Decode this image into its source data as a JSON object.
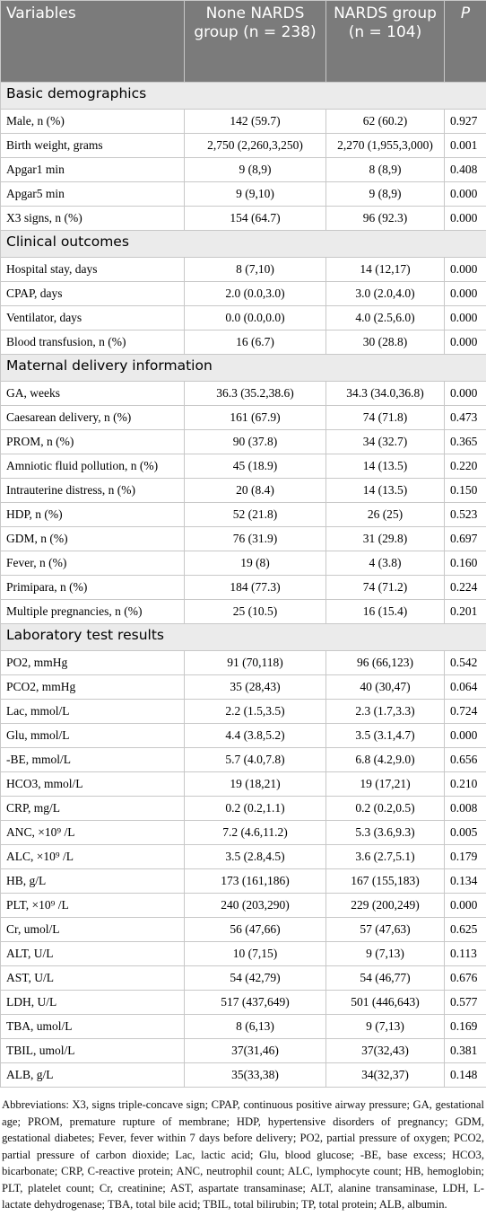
{
  "header": {
    "columns": [
      "Variables",
      "None NARDS group (n = 238)",
      "NARDS group (n = 104)",
      "P"
    ]
  },
  "sections": [
    {
      "title": "Basic demographics",
      "rows": [
        [
          "Male, n (%)",
          "142 (59.7)",
          "62 (60.2)",
          "0.927"
        ],
        [
          "Birth weight, grams",
          "2,750 (2,260,3,250)",
          "2,270 (1,955,3,000)",
          "0.001"
        ],
        [
          "Apgar1 min",
          "9 (8,9)",
          "8 (8,9)",
          "0.408"
        ],
        [
          "Apgar5 min",
          "9 (9,10)",
          "9 (8,9)",
          "0.000"
        ],
        [
          "X3 signs, n (%)",
          "154 (64.7)",
          "96 (92.3)",
          "0.000"
        ]
      ]
    },
    {
      "title": "Clinical outcomes",
      "rows": [
        [
          "Hospital stay, days",
          "8 (7,10)",
          "14 (12,17)",
          "0.000"
        ],
        [
          "CPAP, days",
          "2.0 (0.0,3.0)",
          "3.0 (2.0,4.0)",
          "0.000"
        ],
        [
          "Ventilator, days",
          "0.0 (0.0,0.0)",
          "4.0 (2.5,6.0)",
          "0.000"
        ],
        [
          "Blood transfusion, n (%)",
          "16 (6.7)",
          "30 (28.8)",
          "0.000"
        ]
      ]
    },
    {
      "title": "Maternal delivery information",
      "rows": [
        [
          "GA, weeks",
          "36.3 (35.2,38.6)",
          "34.3 (34.0,36.8)",
          "0.000"
        ],
        [
          "Caesarean delivery, n (%)",
          "161 (67.9)",
          "74 (71.8)",
          "0.473"
        ],
        [
          "PROM, n (%)",
          "90 (37.8)",
          "34 (32.7)",
          "0.365"
        ],
        [
          "Amniotic fluid pollution, n (%)",
          "45 (18.9)",
          "14 (13.5)",
          "0.220"
        ],
        [
          "Intrauterine distress, n (%)",
          "20 (8.4)",
          "14 (13.5)",
          "0.150"
        ],
        [
          "HDP, n (%)",
          "52 (21.8)",
          "26 (25)",
          "0.523"
        ],
        [
          "GDM, n (%)",
          "76 (31.9)",
          "31 (29.8)",
          "0.697"
        ],
        [
          "Fever, n (%)",
          "19 (8)",
          "4 (3.8)",
          "0.160"
        ],
        [
          "Primipara, n (%)",
          "184 (77.3)",
          "74 (71.2)",
          "0.224"
        ],
        [
          "Multiple pregnancies, n (%)",
          "25 (10.5)",
          "16 (15.4)",
          "0.201"
        ]
      ]
    },
    {
      "title": "Laboratory test results",
      "rows": [
        [
          "PO2, mmHg",
          "91 (70,118)",
          "96 (66,123)",
          "0.542"
        ],
        [
          "PCO2, mmHg",
          "35 (28,43)",
          "40 (30,47)",
          "0.064"
        ],
        [
          "Lac, mmol/L",
          "2.2 (1.5,3.5)",
          "2.3 (1.7,3.3)",
          "0.724"
        ],
        [
          "Glu, mmol/L",
          "4.4 (3.8,5.2)",
          "3.5 (3.1,4.7)",
          "0.000"
        ],
        [
          "-BE, mmol/L",
          "5.7 (4.0,7.8)",
          "6.8 (4.2,9.0)",
          "0.656"
        ],
        [
          "HCO3, mmol/L",
          "19 (18,21)",
          "19 (17,21)",
          "0.210"
        ],
        [
          "CRP, mg/L",
          "0.2 (0.2,1.1)",
          "0.2 (0.2,0.5)",
          "0.008"
        ],
        [
          "ANC, ×10⁹ /L",
          "7.2 (4.6,11.2)",
          "5.3 (3.6,9.3)",
          "0.005"
        ],
        [
          "ALC, ×10⁹ /L",
          "3.5 (2.8,4.5)",
          "3.6 (2.7,5.1)",
          "0.179"
        ],
        [
          "HB, g/L",
          "173 (161,186)",
          "167 (155,183)",
          "0.134"
        ],
        [
          "PLT, ×10⁹ /L",
          "240 (203,290)",
          "229 (200,249)",
          "0.000"
        ],
        [
          "Cr, umol/L",
          "56 (47,66)",
          "57 (47,63)",
          "0.625"
        ],
        [
          "ALT, U/L",
          "10 (7,15)",
          "9 (7,13)",
          "0.113"
        ],
        [
          "AST, U/L",
          "54 (42,79)",
          "54 (46,77)",
          "0.676"
        ],
        [
          "LDH, U/L",
          "517 (437,649)",
          "501 (446,643)",
          "0.577"
        ],
        [
          "TBA, umol/L",
          "8 (6,13)",
          "9 (7,13)",
          "0.169"
        ],
        [
          "TBIL, umol/L",
          "37(31,46)",
          "37(32,43)",
          "0.381"
        ],
        [
          "ALB, g/L",
          "35(33,38)",
          "34(32,37)",
          "0.148"
        ]
      ]
    }
  ],
  "footnote": "Abbreviations: X3, signs triple-concave sign; CPAP, continuous positive airway pressure; GA, gestational age; PROM, premature rupture of membrane; HDP, hypertensive disorders of pregnancy; GDM, gestational diabetes; Fever, fever within 7 days before delivery; PO2, partial pressure of oxygen; PCO2, partial pressure of carbon dioxide; Lac, lactic acid; Glu, blood glucose; -BE, base excess; HCO3, bicarbonate; CRP, C-reactive protein; ANC, neutrophil count; ALC, lymphocyte count; HB, hemoglobin; PLT, platelet count; Cr, creatinine; AST, aspartate transaminase; ALT, alanine transaminase, LDH, L-lactate dehydrogenase; TBA, total bile acid; TBIL, total bilirubin; TP, total protein; ALB, albumin."
}
